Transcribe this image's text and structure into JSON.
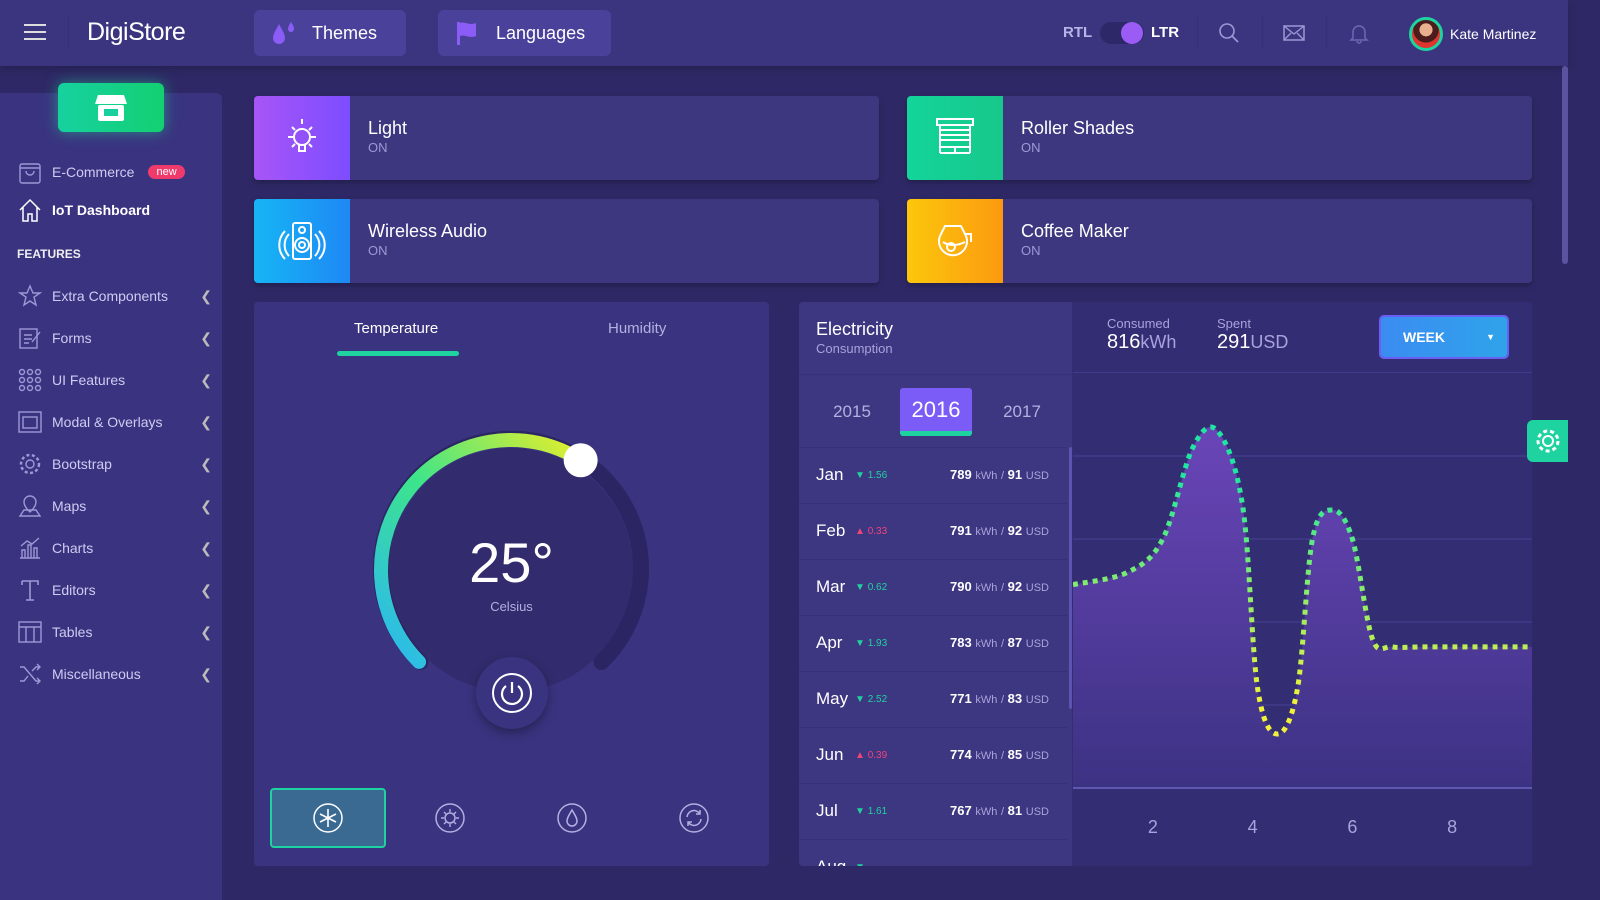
{
  "header": {
    "brand": "DigiStore",
    "themes": "Themes",
    "languages": "Languages",
    "rtl": "RTL",
    "ltr": "LTR",
    "user": "Kate Martinez"
  },
  "sidebar": {
    "ecommerce": "E-Commerce",
    "badge": "new",
    "iot": "IoT Dashboard",
    "features_heading": "FEATURES",
    "items": [
      "Extra Components",
      "Forms",
      "UI Features",
      "Modal & Overlays",
      "Bootstrap",
      "Maps",
      "Charts",
      "Editors",
      "Tables",
      "Miscellaneous"
    ]
  },
  "devices": [
    {
      "name": "Light",
      "status": "ON"
    },
    {
      "name": "Roller Shades",
      "status": "ON"
    },
    {
      "name": "Wireless Audio",
      "status": "ON"
    },
    {
      "name": "Coffee Maker",
      "status": "ON"
    }
  ],
  "temperature": {
    "tab_temperature": "Temperature",
    "tab_humidity": "Humidity",
    "value": "25°",
    "unit": "Celsius",
    "level": 0.62
  },
  "electricity": {
    "title": "Electricity",
    "subtitle": "Consumption",
    "years": [
      "2015",
      "2016",
      "2017"
    ],
    "selected_year": "2016",
    "consumed_label": "Consumed",
    "consumed_value": "816",
    "consumed_unit": "kWh",
    "spent_label": "Spent",
    "spent_value": "291",
    "spent_unit": "USD",
    "period": "WEEK",
    "months": [
      {
        "m": "Jan",
        "dir": "down",
        "delta": "1.56",
        "kwh": "789",
        "usd": "91"
      },
      {
        "m": "Feb",
        "dir": "up",
        "delta": "0.33",
        "kwh": "791",
        "usd": "92"
      },
      {
        "m": "Mar",
        "dir": "down",
        "delta": "0.62",
        "kwh": "790",
        "usd": "92"
      },
      {
        "m": "Apr",
        "dir": "down",
        "delta": "1.93",
        "kwh": "783",
        "usd": "87"
      },
      {
        "m": "May",
        "dir": "down",
        "delta": "2.52",
        "kwh": "771",
        "usd": "83"
      },
      {
        "m": "Jun",
        "dir": "up",
        "delta": "0.39",
        "kwh": "774",
        "usd": "85"
      },
      {
        "m": "Jul",
        "dir": "down",
        "delta": "1.61",
        "kwh": "767",
        "usd": "81"
      },
      {
        "m": "Aug",
        "dir": "down",
        "delta": "",
        "kwh": "",
        "usd": ""
      }
    ],
    "kwh_label": "kWh",
    "usd_label": "USD"
  },
  "chart_data": {
    "type": "line",
    "x": [
      0.4,
      1.5,
      2.2,
      2.8,
      3.3,
      3.8,
      4.1,
      4.5,
      4.9,
      5.2,
      5.6,
      6.0,
      6.4,
      6.8,
      7.5,
      9.6
    ],
    "y": [
      2.45,
      2.6,
      3.0,
      4.1,
      4.3,
      3.4,
      1.2,
      0.65,
      1.2,
      3.0,
      3.35,
      3.0,
      1.8,
      1.7,
      1.7,
      1.7
    ],
    "xticks": [
      "2",
      "4",
      "6",
      "8"
    ],
    "xlim": [
      0.4,
      9.6
    ],
    "ylim": [
      0,
      5
    ],
    "grid": true,
    "colors": [
      "#1fe6a0",
      "#f0f23a"
    ]
  }
}
